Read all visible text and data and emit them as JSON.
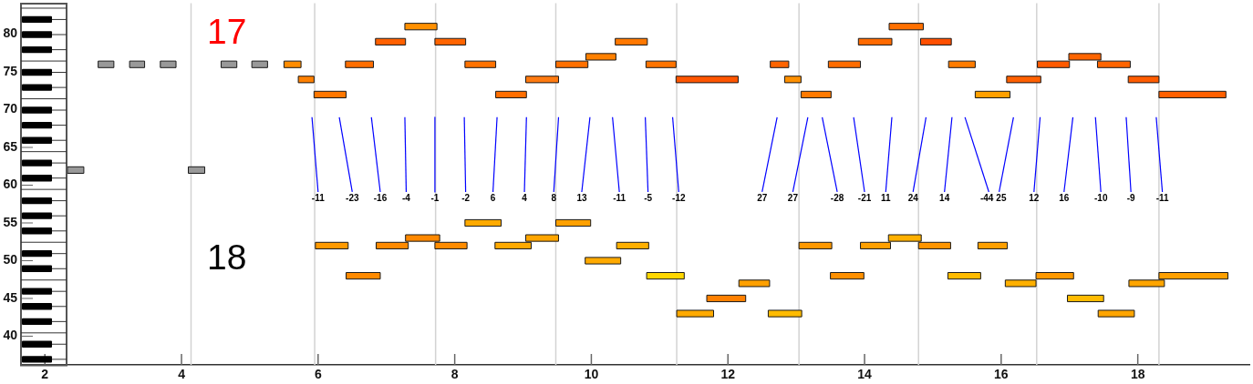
{
  "chart_data": {
    "type": "line",
    "xlim": [
      1.65,
      19.64
    ],
    "ylim": [
      36.2,
      84.1
    ],
    "xticks": [
      2,
      4,
      6,
      8,
      10,
      12,
      14,
      16,
      18
    ],
    "yticks": [
      40,
      45,
      50,
      55,
      60,
      65,
      70,
      75,
      80
    ],
    "ref_lines": [
      {
        "axis": "x",
        "value": 4.14,
        "color": "#d3d3d3"
      },
      {
        "axis": "x",
        "value": 5.95,
        "color": "#d3d3d3"
      },
      {
        "axis": "x",
        "value": 7.72,
        "color": "#d3d3d3"
      },
      {
        "axis": "x",
        "value": 9.48,
        "color": "#d3d3d3"
      },
      {
        "axis": "x",
        "value": 11.25,
        "color": "#d3d3d3"
      },
      {
        "axis": "x",
        "value": 13.04,
        "color": "#d3d3d3"
      },
      {
        "axis": "x",
        "value": 14.79,
        "color": "#d3d3d3"
      },
      {
        "axis": "x",
        "value": 16.52,
        "color": "#d3d3d3"
      },
      {
        "axis": "x",
        "value": 18.31,
        "color": "#d3d3d3"
      }
    ],
    "annotations": [
      "17",
      "18",
      {
        "text": "-11",
        "x": 6.0,
        "y": 59.1
      },
      {
        "text": "-23",
        "x": 6.5,
        "y": 59.1
      },
      {
        "text": "-16",
        "x": 6.91,
        "y": 59.1
      },
      {
        "text": "-4",
        "x": 7.29,
        "y": 59.1
      },
      {
        "text": "-1",
        "x": 7.71,
        "y": 59.1
      },
      {
        "text": "-2",
        "x": 8.16,
        "y": 59.1
      },
      {
        "text": "6",
        "x": 8.56,
        "y": 59.1
      },
      {
        "text": "4",
        "x": 9.02,
        "y": 59.1
      },
      {
        "text": "8",
        "x": 9.45,
        "y": 59.1
      },
      {
        "text": "13",
        "x": 9.86,
        "y": 59.1
      },
      {
        "text": "-11",
        "x": 10.41,
        "y": 59.1
      },
      {
        "text": "-5",
        "x": 10.83,
        "y": 59.1
      },
      {
        "text": "-12",
        "x": 11.28,
        "y": 59.1
      },
      {
        "text": "27",
        "x": 12.5,
        "y": 59.1
      },
      {
        "text": "27",
        "x": 12.95,
        "y": 59.1
      },
      {
        "text": "-28",
        "x": 13.6,
        "y": 59.1
      },
      {
        "text": "-21",
        "x": 14.0,
        "y": 59.1
      },
      {
        "text": "11",
        "x": 14.31,
        "y": 59.1
      },
      {
        "text": "24",
        "x": 14.71,
        "y": 59.1
      },
      {
        "text": "14",
        "x": 15.17,
        "y": 59.1
      },
      {
        "text": "-44",
        "x": 15.82,
        "y": 59.1
      },
      {
        "text": "25",
        "x": 15.97,
        "y": 59.1
      },
      {
        "text": "12",
        "x": 16.48,
        "y": 59.1
      },
      {
        "text": "16",
        "x": 16.92,
        "y": 59.1
      },
      {
        "text": "-10",
        "x": 17.46,
        "y": 59.1
      },
      {
        "text": "-9",
        "x": 17.9,
        "y": 59.1
      },
      {
        "text": "-11",
        "x": 18.36,
        "y": 59.1
      }
    ],
    "series": [
      {
        "color": "#999999",
        "x": [
          2.78,
          3.01
        ],
        "values": [
          76,
          76
        ]
      },
      {
        "color": "#999999",
        "x": [
          3.24,
          3.46
        ],
        "values": [
          76,
          76
        ]
      },
      {
        "color": "#999999",
        "x": [
          3.69,
          3.92
        ],
        "values": [
          76,
          76
        ]
      },
      {
        "color": "#999999",
        "x": [
          4.58,
          4.81
        ],
        "values": [
          76,
          76
        ]
      },
      {
        "color": "#999999",
        "x": [
          5.03,
          5.26
        ],
        "values": [
          76,
          76
        ]
      },
      {
        "color": "#999999",
        "x": [
          2.33,
          2.57
        ],
        "values": [
          62,
          62
        ]
      },
      {
        "color": "#999999",
        "x": [
          4.1,
          4.34
        ],
        "values": [
          62,
          62
        ]
      },
      {
        "color": "#ff8c00",
        "x": [
          5.5,
          5.75
        ],
        "values": [
          76,
          76
        ]
      },
      {
        "color": "#ff8000",
        "x": [
          5.71,
          5.94
        ],
        "values": [
          74,
          74
        ]
      },
      {
        "color": "#ff7700",
        "x": [
          5.94,
          6.41
        ],
        "values": [
          72,
          72
        ]
      },
      {
        "color": "#ff6e00",
        "x": [
          6.4,
          6.81
        ],
        "values": [
          76,
          76
        ]
      },
      {
        "color": "#ff6000",
        "x": [
          6.84,
          7.28
        ],
        "values": [
          79,
          79
        ]
      },
      {
        "color": "#ff9000",
        "x": [
          7.27,
          7.74
        ],
        "values": [
          81,
          81
        ]
      },
      {
        "color": "#ff6400",
        "x": [
          7.71,
          8.16
        ],
        "values": [
          79,
          79
        ]
      },
      {
        "color": "#ff7200",
        "x": [
          8.15,
          8.6
        ],
        "values": [
          76,
          76
        ]
      },
      {
        "color": "#ff6e00",
        "x": [
          8.6,
          9.05
        ],
        "values": [
          72,
          72
        ]
      },
      {
        "color": "#ff7a10",
        "x": [
          9.04,
          9.52
        ],
        "values": [
          74,
          74
        ]
      },
      {
        "color": "#ff7000",
        "x": [
          9.48,
          9.95
        ],
        "values": [
          76,
          76
        ]
      },
      {
        "color": "#ff8000",
        "x": [
          9.92,
          10.36
        ],
        "values": [
          77,
          77
        ]
      },
      {
        "color": "#ff7800",
        "x": [
          10.35,
          10.82
        ],
        "values": [
          79,
          79
        ]
      },
      {
        "color": "#ff7400",
        "x": [
          10.8,
          11.24
        ],
        "values": [
          76,
          76
        ]
      },
      {
        "color": "#ff5500",
        "x": [
          11.24,
          12.15
        ],
        "values": [
          74,
          74
        ]
      },
      {
        "color": "#ff6400",
        "x": [
          12.62,
          12.89
        ],
        "values": [
          76,
          76
        ]
      },
      {
        "color": "#ff9000",
        "x": [
          12.83,
          13.07
        ],
        "values": [
          74,
          74
        ]
      },
      {
        "color": "#ff7a00",
        "x": [
          13.07,
          13.51
        ],
        "values": [
          72,
          72
        ]
      },
      {
        "color": "#ff6c00",
        "x": [
          13.47,
          13.94
        ],
        "values": [
          76,
          76
        ]
      },
      {
        "color": "#ff6a00",
        "x": [
          13.91,
          14.4
        ],
        "values": [
          79,
          79
        ]
      },
      {
        "color": "#ff7000",
        "x": [
          14.36,
          14.86
        ],
        "values": [
          81,
          81
        ]
      },
      {
        "color": "#ff4f00",
        "x": [
          14.82,
          15.27
        ],
        "values": [
          79,
          79
        ]
      },
      {
        "color": "#ff7c00",
        "x": [
          15.23,
          15.62
        ],
        "values": [
          76,
          76
        ]
      },
      {
        "color": "#ffa000",
        "x": [
          15.62,
          16.13
        ],
        "values": [
          72,
          72
        ]
      },
      {
        "color": "#ff6000",
        "x": [
          16.08,
          16.58
        ],
        "values": [
          74,
          74
        ]
      },
      {
        "color": "#ff5a00",
        "x": [
          16.53,
          17.0
        ],
        "values": [
          76,
          76
        ]
      },
      {
        "color": "#ff6400",
        "x": [
          16.99,
          17.46
        ],
        "values": [
          77,
          77
        ]
      },
      {
        "color": "#ff6400",
        "x": [
          17.41,
          17.89
        ],
        "values": [
          76,
          76
        ]
      },
      {
        "color": "#ff5c00",
        "x": [
          17.86,
          18.31
        ],
        "values": [
          74,
          74
        ]
      },
      {
        "color": "#ff6000",
        "x": [
          18.31,
          19.29
        ],
        "values": [
          72,
          72
        ]
      },
      {
        "color": "#ff9a00",
        "x": [
          5.96,
          6.44
        ],
        "values": [
          52,
          52
        ]
      },
      {
        "color": "#ff8a00",
        "x": [
          6.41,
          6.91
        ],
        "values": [
          48,
          48
        ]
      },
      {
        "color": "#ff8a00",
        "x": [
          6.85,
          7.32
        ],
        "values": [
          52,
          52
        ]
      },
      {
        "color": "#ff8800",
        "x": [
          7.28,
          7.78
        ],
        "values": [
          53,
          53
        ]
      },
      {
        "color": "#ff8c00",
        "x": [
          7.71,
          8.18
        ],
        "values": [
          52,
          52
        ]
      },
      {
        "color": "#ffaa00",
        "x": [
          8.15,
          8.68
        ],
        "values": [
          55,
          55
        ]
      },
      {
        "color": "#ffaa00",
        "x": [
          8.59,
          9.12
        ],
        "values": [
          52,
          52
        ]
      },
      {
        "color": "#ffa500",
        "x": [
          9.04,
          9.52
        ],
        "values": [
          53,
          53
        ]
      },
      {
        "color": "#ffa000",
        "x": [
          9.48,
          9.99
        ],
        "values": [
          55,
          55
        ]
      },
      {
        "color": "#ffaa00",
        "x": [
          9.91,
          10.43
        ],
        "values": [
          50,
          50
        ]
      },
      {
        "color": "#ffb000",
        "x": [
          10.37,
          10.84
        ],
        "values": [
          52,
          52
        ]
      },
      {
        "color": "#ffd700",
        "x": [
          10.81,
          11.36
        ],
        "values": [
          48,
          48
        ]
      },
      {
        "color": "#ffaa00",
        "x": [
          11.25,
          11.79
        ],
        "values": [
          43,
          43
        ]
      },
      {
        "color": "#ff8000",
        "x": [
          11.69,
          12.26
        ],
        "values": [
          45,
          45
        ]
      },
      {
        "color": "#ffa000",
        "x": [
          12.16,
          12.61
        ],
        "values": [
          47,
          47
        ]
      },
      {
        "color": "#ffbb00",
        "x": [
          12.59,
          13.08
        ],
        "values": [
          43,
          43
        ]
      },
      {
        "color": "#ff9900",
        "x": [
          13.04,
          13.52
        ],
        "values": [
          52,
          52
        ]
      },
      {
        "color": "#ff9000",
        "x": [
          13.5,
          13.99
        ],
        "values": [
          48,
          48
        ]
      },
      {
        "color": "#ffa000",
        "x": [
          13.94,
          14.38
        ],
        "values": [
          52,
          52
        ]
      },
      {
        "color": "#ffb000",
        "x": [
          14.35,
          14.83
        ],
        "values": [
          53,
          53
        ]
      },
      {
        "color": "#ff9500",
        "x": [
          14.79,
          15.26
        ],
        "values": [
          52,
          52
        ]
      },
      {
        "color": "#ffbb00",
        "x": [
          15.22,
          15.7
        ],
        "values": [
          48,
          48
        ]
      },
      {
        "color": "#ffa000",
        "x": [
          15.66,
          16.09
        ],
        "values": [
          52,
          52
        ]
      },
      {
        "color": "#ffb000",
        "x": [
          16.06,
          16.51
        ],
        "values": [
          47,
          47
        ]
      },
      {
        "color": "#ff9900",
        "x": [
          16.51,
          17.06
        ],
        "values": [
          48,
          48
        ]
      },
      {
        "color": "#ffbb00",
        "x": [
          16.97,
          17.5
        ],
        "values": [
          45,
          45
        ]
      },
      {
        "color": "#ffa500",
        "x": [
          17.42,
          17.95
        ],
        "values": [
          43,
          43
        ]
      },
      {
        "color": "#ffa500",
        "x": [
          17.87,
          18.39
        ],
        "values": [
          47,
          47
        ]
      },
      {
        "color": "#ffa000",
        "x": [
          18.31,
          19.32
        ],
        "values": [
          48,
          48
        ]
      },
      {
        "color": "#0000ff",
        "x": [
          5.91,
          6.0
        ],
        "values": [
          69.0,
          59.1
        ]
      },
      {
        "color": "#0000ff",
        "x": [
          6.31,
          6.5
        ],
        "values": [
          69.0,
          59.1
        ]
      },
      {
        "color": "#0000ff",
        "x": [
          6.78,
          6.91
        ],
        "values": [
          69.0,
          59.1
        ]
      },
      {
        "color": "#0000ff",
        "x": [
          7.27,
          7.29
        ],
        "values": [
          69.0,
          59.1
        ]
      },
      {
        "color": "#0000ff",
        "x": [
          7.71,
          7.71
        ],
        "values": [
          69.0,
          59.1
        ]
      },
      {
        "color": "#0000ff",
        "x": [
          8.14,
          8.16
        ],
        "values": [
          69.0,
          59.1
        ]
      },
      {
        "color": "#0000ff",
        "x": [
          8.62,
          8.56
        ],
        "values": [
          69.0,
          59.1
        ]
      },
      {
        "color": "#0000ff",
        "x": [
          9.05,
          9.02
        ],
        "values": [
          69.0,
          59.1
        ]
      },
      {
        "color": "#0000ff",
        "x": [
          9.52,
          9.45
        ],
        "values": [
          69.0,
          59.1
        ]
      },
      {
        "color": "#0000ff",
        "x": [
          9.98,
          9.86
        ],
        "values": [
          69.0,
          59.1
        ]
      },
      {
        "color": "#0000ff",
        "x": [
          10.31,
          10.41
        ],
        "values": [
          69.0,
          59.1
        ]
      },
      {
        "color": "#0000ff",
        "x": [
          10.79,
          10.83
        ],
        "values": [
          69.0,
          59.1
        ]
      },
      {
        "color": "#0000ff",
        "x": [
          11.19,
          11.28
        ],
        "values": [
          69.0,
          59.1
        ]
      },
      {
        "color": "#0000ff",
        "x": [
          12.72,
          12.5
        ],
        "values": [
          69.0,
          59.1
        ]
      },
      {
        "color": "#0000ff",
        "x": [
          13.17,
          12.95
        ],
        "values": [
          69.0,
          59.1
        ]
      },
      {
        "color": "#0000ff",
        "x": [
          13.38,
          13.6
        ],
        "values": [
          69.0,
          59.1
        ]
      },
      {
        "color": "#0000ff",
        "x": [
          13.84,
          14.0
        ],
        "values": [
          69.0,
          59.1
        ]
      },
      {
        "color": "#0000ff",
        "x": [
          14.4,
          14.31
        ],
        "values": [
          69.0,
          59.1
        ]
      },
      {
        "color": "#0000ff",
        "x": [
          14.9,
          14.71
        ],
        "values": [
          69.0,
          59.1
        ]
      },
      {
        "color": "#0000ff",
        "x": [
          15.28,
          15.17
        ],
        "values": [
          69.0,
          59.1
        ]
      },
      {
        "color": "#0000ff",
        "x": [
          15.47,
          15.82
        ],
        "values": [
          69.0,
          59.1
        ]
      },
      {
        "color": "#0000ff",
        "x": [
          16.18,
          15.97
        ],
        "values": [
          69.0,
          59.1
        ]
      },
      {
        "color": "#0000ff",
        "x": [
          16.57,
          16.48
        ],
        "values": [
          69.0,
          59.1
        ]
      },
      {
        "color": "#0000ff",
        "x": [
          17.05,
          16.92
        ],
        "values": [
          69.0,
          59.1
        ]
      },
      {
        "color": "#0000ff",
        "x": [
          17.38,
          17.46
        ],
        "values": [
          69.0,
          59.1
        ]
      },
      {
        "color": "#0000ff",
        "x": [
          17.83,
          17.9
        ],
        "values": [
          69.0,
          59.1
        ]
      },
      {
        "color": "#0000ff",
        "x": [
          18.27,
          18.36
        ],
        "values": [
          69.0,
          59.1
        ]
      }
    ]
  }
}
